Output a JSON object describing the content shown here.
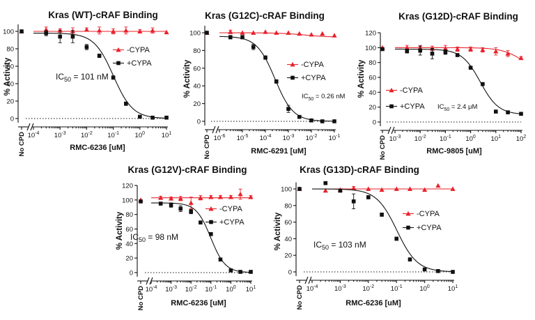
{
  "colors": {
    "cypa_minus": "#e8222b",
    "cypa_plus": "#111111",
    "axis": "#111111"
  },
  "no_cpd_label": "No CPD",
  "chart_data": [
    {
      "type": "scatter",
      "title": "Kras (WT)-cRAF Binding",
      "xlabel": "RMC-6236 [uM]",
      "ylabel": "% Activity",
      "xscale": "log",
      "xlim": [
        0.0001,
        10
      ],
      "ylim": [
        -5,
        108
      ],
      "yticks": [
        0,
        20,
        40,
        60,
        80,
        100
      ],
      "xticks": [
        {
          "v": 0.0001,
          "base": "10",
          "exp": "-4"
        },
        {
          "v": 0.001,
          "base": "10",
          "exp": "-3"
        },
        {
          "v": 0.01,
          "base": "10",
          "exp": "-2"
        },
        {
          "v": 0.1,
          "base": "10",
          "exp": "-1"
        },
        {
          "v": 1,
          "base": "10",
          "exp": "0"
        },
        {
          "v": 10,
          "base": "10",
          "exp": "1"
        }
      ],
      "no_cpd": {
        "minus": 100,
        "plus": 100
      },
      "series": [
        {
          "name": "-CYPA",
          "marker": "triangle",
          "top": 100,
          "bottom": 100,
          "ic50": 1,
          "hill": 1,
          "x": [
            0.0003,
            0.001,
            0.003,
            0.01,
            0.03,
            0.1,
            0.3,
            1,
            3,
            10
          ],
          "y": [
            102,
            101,
            100,
            102,
            101,
            100,
            101,
            100,
            101,
            99
          ],
          "err": [
            3,
            2,
            4,
            2,
            4,
            3,
            4,
            2,
            3,
            1
          ]
        },
        {
          "name": "+CYPA",
          "marker": "square",
          "top": 98,
          "bottom": 0,
          "ic50": 0.101,
          "hill": 1.2,
          "x": [
            0.0003,
            0.001,
            0.003,
            0.01,
            0.03,
            0.1,
            0.3,
            1,
            3,
            10
          ],
          "y": [
            98,
            94,
            94,
            82,
            72,
            47,
            17,
            2,
            1,
            1
          ],
          "err": [
            3,
            7,
            7,
            3,
            2,
            2,
            2,
            1,
            1,
            1
          ]
        }
      ],
      "legend": [
        "-CYPA",
        "+CYPA"
      ],
      "ic50_text": {
        "pre": "IC",
        "sub": "50",
        "post": " = 101 nM"
      }
    },
    {
      "type": "scatter",
      "title": "Kras (G12C)-cRAF Binding",
      "xlabel": "RMC-6291 [uM]",
      "ylabel": "% Activity",
      "xscale": "log",
      "xlim": [
        1e-06,
        0.1
      ],
      "ylim": [
        -5,
        108
      ],
      "yticks": [
        0,
        20,
        40,
        60,
        80,
        100
      ],
      "xticks": [
        {
          "v": 1e-06,
          "base": "10",
          "exp": "-6"
        },
        {
          "v": 1e-05,
          "base": "10",
          "exp": "-5"
        },
        {
          "v": 0.0001,
          "base": "10",
          "exp": "-4"
        },
        {
          "v": 0.001,
          "base": "10",
          "exp": "-3"
        },
        {
          "v": 0.01,
          "base": "10",
          "exp": "-2"
        },
        {
          "v": 0.1,
          "base": "10",
          "exp": "-1"
        }
      ],
      "no_cpd": {
        "minus": 100,
        "plus": 100
      },
      "series": [
        {
          "name": "-CYPA",
          "marker": "triangle",
          "top": 100,
          "bottom": 95,
          "ic50": 0.005,
          "hill": 0.8,
          "x": [
            3e-06,
            1e-05,
            3e-05,
            0.0001,
            0.0003,
            0.001,
            0.003,
            0.01,
            0.03,
            0.1
          ],
          "y": [
            101,
            100,
            100,
            101,
            100,
            100,
            99,
            98,
            99,
            97
          ],
          "err": [
            2,
            1,
            1,
            1,
            1,
            1,
            1,
            1,
            1,
            1
          ]
        },
        {
          "name": "+CYPA",
          "marker": "square",
          "top": 96,
          "bottom": 0,
          "ic50": 0.00026,
          "hill": 1.1,
          "x": [
            3e-06,
            1e-05,
            3e-05,
            0.0001,
            0.0003,
            0.001,
            0.003,
            0.01,
            0.03,
            0.1
          ],
          "y": [
            95,
            95,
            84,
            72,
            45,
            14,
            5,
            1,
            0,
            0
          ],
          "err": [
            2,
            2,
            3,
            2,
            2,
            4,
            1,
            1,
            1,
            1
          ]
        }
      ],
      "legend": [
        "-CYPA",
        "+CYPA"
      ],
      "ic50_text": {
        "pre": "IC",
        "sub": "50",
        "post": " = 0.26 nM"
      }
    },
    {
      "type": "scatter",
      "title": "Kras (G12D)-cRAF Binding",
      "xlabel": "RMC-9805 [uM]",
      "ylabel": "% Activity",
      "xscale": "log",
      "xlim": [
        0.001,
        100
      ],
      "ylim": [
        -5,
        120
      ],
      "yticks": [
        0,
        20,
        40,
        60,
        80,
        100,
        120
      ],
      "xticks": [
        {
          "v": 0.001,
          "base": "10",
          "exp": "-3"
        },
        {
          "v": 0.01,
          "base": "10",
          "exp": "-2"
        },
        {
          "v": 0.1,
          "base": "10",
          "exp": "-1"
        },
        {
          "v": 1,
          "base": "10",
          "exp": "0"
        },
        {
          "v": 10,
          "base": "10",
          "exp": "1"
        },
        {
          "v": 100,
          "base": "10",
          "exp": "2"
        }
      ],
      "no_cpd": {
        "minus": 100,
        "plus": 98
      },
      "series": [
        {
          "name": "-CYPA",
          "marker": "triangle",
          "top": 100,
          "bottom": 60,
          "ic50": 150,
          "hill": 1,
          "x": [
            0.003,
            0.01,
            0.03,
            0.1,
            0.3,
            1,
            3,
            10,
            30,
            100
          ],
          "y": [
            100,
            100,
            99,
            99,
            98,
            98,
            97,
            95,
            92,
            86
          ],
          "err": [
            3,
            3,
            3,
            4,
            3,
            3,
            3,
            5,
            4,
            2
          ]
        },
        {
          "name": "+CYPA",
          "marker": "square",
          "top": 98,
          "bottom": 10,
          "ic50": 2.4,
          "hill": 1.2,
          "x": [
            0.003,
            0.01,
            0.03,
            0.1,
            0.3,
            1,
            3,
            10,
            30,
            100
          ],
          "y": [
            95,
            96,
            92,
            94,
            90,
            73,
            51,
            14,
            13,
            11
          ],
          "err": [
            2,
            6,
            7,
            3,
            2,
            2,
            2,
            1,
            1,
            1
          ]
        }
      ],
      "legend": [
        "-CYPA",
        "+CYPA"
      ],
      "ic50_text": {
        "pre": "IC",
        "sub": "50",
        "post": " = 2.4 μM"
      }
    },
    {
      "type": "scatter",
      "title": "Kras (G12V)-cRAF Binding",
      "xlabel": "RMC-6236 [uM]",
      "ylabel": "% Activity",
      "xscale": "log",
      "xlim": [
        0.0001,
        10
      ],
      "ylim": [
        -5,
        120
      ],
      "yticks": [
        0,
        20,
        40,
        60,
        80,
        100,
        120
      ],
      "xticks": [
        {
          "v": 0.0001,
          "base": "10",
          "exp": "-4"
        },
        {
          "v": 0.001,
          "base": "10",
          "exp": "-3"
        },
        {
          "v": 0.01,
          "base": "10",
          "exp": "-2"
        },
        {
          "v": 0.1,
          "base": "10",
          "exp": "-1"
        },
        {
          "v": 1,
          "base": "10",
          "exp": "0"
        },
        {
          "v": 10,
          "base": "10",
          "exp": "1"
        }
      ],
      "no_cpd": {
        "minus": 100,
        "plus": 98
      },
      "series": [
        {
          "name": "-CYPA",
          "marker": "triangle",
          "top": 103,
          "bottom": 103,
          "ic50": 1,
          "hill": 1,
          "x": [
            0.0003,
            0.001,
            0.003,
            0.01,
            0.03,
            0.1,
            0.3,
            1,
            3,
            10
          ],
          "y": [
            103,
            102,
            102,
            96,
            103,
            104,
            104,
            104,
            108,
            104
          ],
          "err": [
            2,
            2,
            3,
            8,
            3,
            2,
            2,
            2,
            7,
            2
          ]
        },
        {
          "name": "+CYPA",
          "marker": "square",
          "top": 96,
          "bottom": 0,
          "ic50": 0.098,
          "hill": 1.2,
          "x": [
            0.0003,
            0.001,
            0.003,
            0.01,
            0.03,
            0.1,
            0.3,
            1,
            3,
            10
          ],
          "y": [
            95,
            93,
            88,
            84,
            69,
            53,
            18,
            3,
            1,
            1
          ],
          "err": [
            2,
            3,
            4,
            3,
            2,
            2,
            1,
            1,
            1,
            1
          ]
        }
      ],
      "legend": [
        "-CYPA",
        "+CYPA"
      ],
      "ic50_text": {
        "pre": "IC",
        "sub": "50",
        "post": " = 98 nM"
      }
    },
    {
      "type": "scatter",
      "title": "Kras (G13D)-cRAF Binding",
      "xlabel": "RMC-6236 [uM]",
      "ylabel": "% Activity",
      "xscale": "log",
      "xlim": [
        0.0001,
        10
      ],
      "ylim": [
        -5,
        108
      ],
      "yticks": [
        0,
        20,
        40,
        60,
        80,
        100
      ],
      "xticks": [
        {
          "v": 0.0001,
          "base": "10",
          "exp": "-4"
        },
        {
          "v": 0.001,
          "base": "10",
          "exp": "-3"
        },
        {
          "v": 0.01,
          "base": "10",
          "exp": "-2"
        },
        {
          "v": 0.1,
          "base": "10",
          "exp": "-1"
        },
        {
          "v": 1,
          "base": "10",
          "exp": "0"
        },
        {
          "v": 10,
          "base": "10",
          "exp": "1"
        }
      ],
      "no_cpd": {
        "minus": 100,
        "plus": 100
      },
      "series": [
        {
          "name": "-CYPA",
          "marker": "triangle",
          "top": 100,
          "bottom": 100,
          "ic50": 1,
          "hill": 1,
          "x": [
            0.0003,
            0.001,
            0.003,
            0.01,
            0.03,
            0.1,
            0.3,
            1,
            3,
            10
          ],
          "y": [
            98,
            99,
            101,
            100,
            99,
            100,
            100,
            99,
            104,
            100
          ],
          "err": [
            1,
            1,
            2,
            1,
            1,
            1,
            1,
            1,
            1,
            1
          ]
        },
        {
          "name": "+CYPA",
          "marker": "square",
          "top": 100,
          "bottom": 0,
          "ic50": 0.103,
          "hill": 1.2,
          "x": [
            0.0003,
            0.001,
            0.003,
            0.01,
            0.03,
            0.1,
            0.3,
            1,
            3,
            10
          ],
          "y": [
            107,
            98,
            85,
            90,
            69,
            40,
            15,
            3,
            1,
            0
          ],
          "err": [
            1,
            2,
            9,
            2,
            2,
            2,
            2,
            1,
            1,
            1
          ]
        }
      ],
      "legend": [
        "-CYPA",
        "+CYPA"
      ],
      "ic50_text": {
        "pre": "IC",
        "sub": "50",
        "post": " = 103 nM"
      }
    }
  ]
}
